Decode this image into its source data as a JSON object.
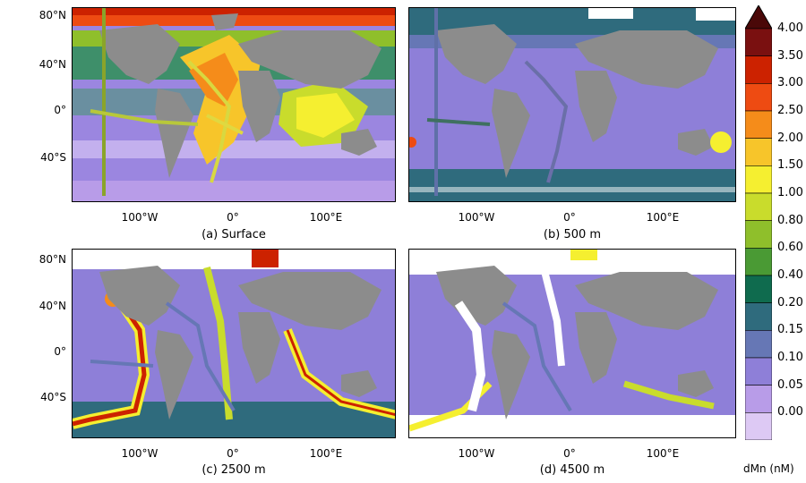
{
  "panels": [
    {
      "id": "a",
      "caption": "(a) Surface"
    },
    {
      "id": "b",
      "caption": "(b) 500 m"
    },
    {
      "id": "c",
      "caption": "(c) 2500 m"
    },
    {
      "id": "d",
      "caption": "(d) 4500 m"
    }
  ],
  "lat_labels": [
    "80°N",
    "40°N",
    "0°",
    "40°S"
  ],
  "lon_labels": [
    "100°W",
    "0°",
    "100°E"
  ],
  "colorbar": {
    "unit": "dMn (nM)",
    "ticks": [
      "4.00",
      "3.50",
      "3.00",
      "2.50",
      "2.00",
      "1.50",
      "1.00",
      "0.80",
      "0.60",
      "0.40",
      "0.20",
      "0.15",
      "0.10",
      "0.05",
      "0.00"
    ],
    "colors": [
      "#7a1010",
      "#cc2200",
      "#ee4b12",
      "#f58c1a",
      "#f7c52a",
      "#f5ef30",
      "#c9dc2c",
      "#8fbf2b",
      "#4a9a34",
      "#0f6b4e",
      "#2f6b7d",
      "#6677b5",
      "#8e7fd8",
      "#b89ce8",
      "#ddc9f4"
    ]
  },
  "colors": {
    "land": "#8c8c8c",
    "background_low": "#9b86e0"
  }
}
